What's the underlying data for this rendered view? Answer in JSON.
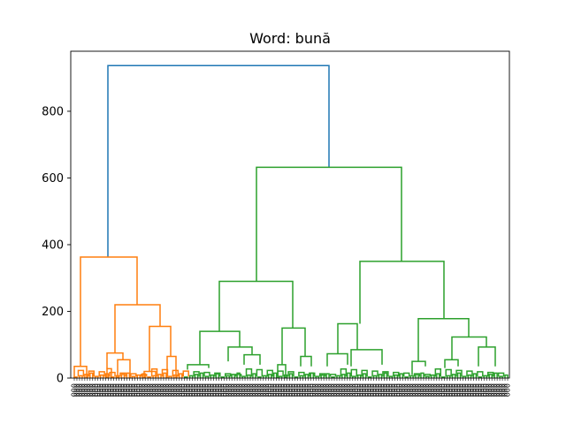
{
  "chart_data": {
    "type": "dendrogram",
    "title": "Word: bună",
    "xlabel": "",
    "ylabel": "",
    "ylim": [
      0,
      980
    ],
    "yticks": [
      0,
      200,
      400,
      600,
      800
    ],
    "grid": false,
    "colors": {
      "root": "#1f77b4",
      "cluster_a": "#ff7f0e",
      "cluster_b": "#2ca02c"
    },
    "leaf_count": 166,
    "leaf_label_text": "0",
    "links": [
      {
        "left": [
          0.5,
          0.0
        ],
        "right": [
          1.0,
          0.0
        ],
        "height": 937,
        "color": "root"
      },
      {
        "left": [
          0.02,
          0.0
        ],
        "right": [
          0.55,
          0.0
        ],
        "height": 363,
        "color": "cluster_a"
      },
      {
        "left": [
          0.25,
          0.0
        ],
        "right": [
          0.8,
          0.0
        ],
        "height": 220,
        "color": "cluster_a"
      },
      {
        "left": [
          0.0,
          0.0
        ],
        "right": [
          1.0,
          0.0
        ],
        "height": 35,
        "color": "cluster_a"
      },
      {
        "left": [
          0.3,
          0.0
        ],
        "right": [
          0.6,
          0.0
        ],
        "height": 75,
        "color": "cluster_a"
      },
      {
        "left": [
          0.2,
          0.0
        ],
        "right": [
          0.8,
          0.0
        ],
        "height": 155,
        "color": "cluster_a"
      },
      {
        "left": [
          0.4,
          0.0
        ],
        "right": [
          0.9,
          0.0
        ],
        "height": 55,
        "color": "cluster_a"
      },
      {
        "left": [
          0.5,
          0.0
        ],
        "right": [
          1.0,
          0.0
        ],
        "height": 65,
        "color": "cluster_a"
      },
      {
        "left": [
          0.3,
          0.0
        ],
        "right": [
          0.8,
          0.0
        ],
        "height": 632,
        "color": "cluster_b"
      },
      {
        "left": [
          0.3,
          0.0
        ],
        "right": [
          0.8,
          0.0
        ],
        "height": 290,
        "color": "cluster_b"
      },
      {
        "left": [
          0.3,
          0.0
        ],
        "right": [
          0.8,
          0.0
        ],
        "height": 350,
        "color": "cluster_b"
      },
      {
        "left": [
          0.3,
          0.0
        ],
        "right": [
          0.8,
          0.0
        ],
        "height": 140,
        "color": "cluster_b"
      },
      {
        "left": [
          0.3,
          0.0
        ],
        "right": [
          0.8,
          0.0
        ],
        "height": 150,
        "color": "cluster_b"
      },
      {
        "left": [
          0.3,
          0.0
        ],
        "right": [
          0.8,
          0.0
        ],
        "height": 163,
        "color": "cluster_b"
      },
      {
        "left": [
          0.3,
          0.0
        ],
        "right": [
          0.8,
          0.0
        ],
        "height": 178,
        "color": "cluster_b"
      },
      {
        "left": [
          0.3,
          0.0
        ],
        "right": [
          0.8,
          0.0
        ],
        "height": 93,
        "color": "cluster_b"
      },
      {
        "left": [
          0.3,
          0.0
        ],
        "right": [
          0.8,
          0.0
        ],
        "height": 123,
        "color": "cluster_b"
      },
      {
        "left": [
          0.3,
          0.0
        ],
        "right": [
          0.8,
          0.0
        ],
        "height": 85,
        "color": "cluster_b"
      },
      {
        "left": [
          0.3,
          0.0
        ],
        "right": [
          0.8,
          0.0
        ],
        "height": 73,
        "color": "cluster_b"
      }
    ]
  }
}
